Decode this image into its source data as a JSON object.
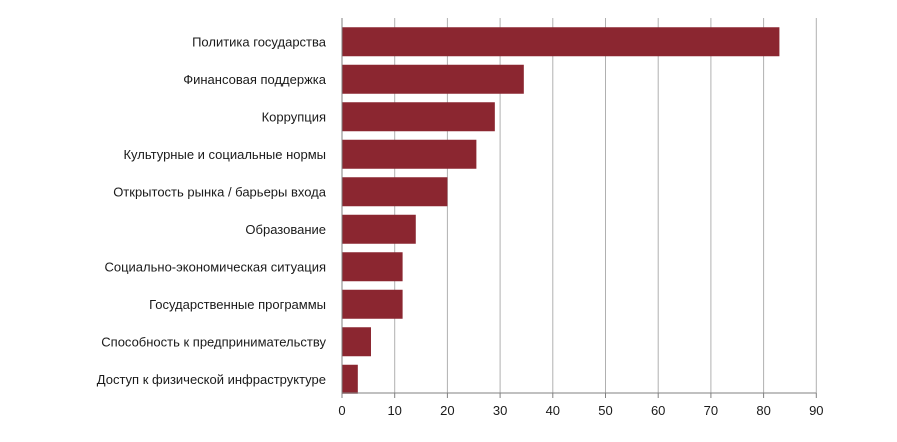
{
  "chart_data": {
    "type": "bar",
    "orientation": "horizontal",
    "categories": [
      "Политика государства",
      "Финансовая поддержка",
      "Коррупция",
      "Культурные и социальные нормы",
      "Открытость рынка / барьеры входа",
      "Образование",
      "Социально-экономическая ситуация",
      "Государственные программы",
      "Способность к предпринимательству",
      "Доступ к физической инфраструктуре"
    ],
    "values": [
      83,
      34.5,
      29,
      25.5,
      20,
      14,
      11.5,
      11.5,
      5.5,
      3
    ],
    "xlim": [
      0,
      90
    ],
    "xticks": [
      "0",
      "10",
      "20",
      "30",
      "40",
      "50",
      "60",
      "70",
      "80",
      "90"
    ],
    "grid": "vertical",
    "legend": "none",
    "title": "",
    "xlabel": "",
    "ylabel": ""
  },
  "colors": {
    "bar": "#8b2630",
    "grid": "#b0b0b0",
    "axis": "#808080"
  }
}
